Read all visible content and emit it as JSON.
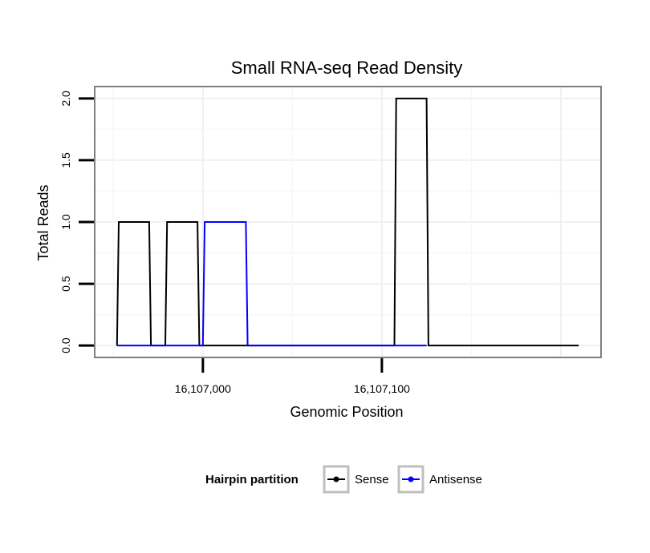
{
  "chart_data": {
    "type": "line",
    "title": "Small RNA-seq Read Density",
    "xlabel": "Genomic Position",
    "ylabel": "Total Reads",
    "xlim": [
      16106940,
      16107222
    ],
    "ylim": [
      -0.09,
      2.09
    ],
    "x_ticks": [
      16107000,
      16107100
    ],
    "x_tick_labels": [
      "16,107,000",
      "16,107,100"
    ],
    "y_ticks": [
      0,
      0.5,
      1,
      1.5,
      2
    ],
    "y_tick_labels": [
      "0.0",
      "0.5",
      "1.0",
      "1.5",
      "2.0"
    ],
    "grid": true,
    "legend": {
      "title": "Hairpin partition",
      "position": "bottom",
      "entries": [
        "Sense",
        "Antisense"
      ]
    },
    "series": [
      {
        "name": "Sense",
        "color": "#000000",
        "x": [
          16106952,
          16106953,
          16106970,
          16106971,
          16106979,
          16106980,
          16106997,
          16106998,
          16107107,
          16107108,
          16107125,
          16107126,
          16107210
        ],
        "y": [
          0,
          1,
          1,
          0,
          0,
          1,
          1,
          0,
          0,
          2,
          2,
          0,
          0
        ]
      },
      {
        "name": "Antisense",
        "color": "#0000ff",
        "x": [
          16106952,
          16106970,
          16106979,
          16106997,
          16107000,
          16107001,
          16107024,
          16107025,
          16107107,
          16107125
        ],
        "y": [
          0,
          0,
          0,
          0,
          0,
          1,
          1,
          0,
          0,
          0
        ]
      }
    ]
  }
}
